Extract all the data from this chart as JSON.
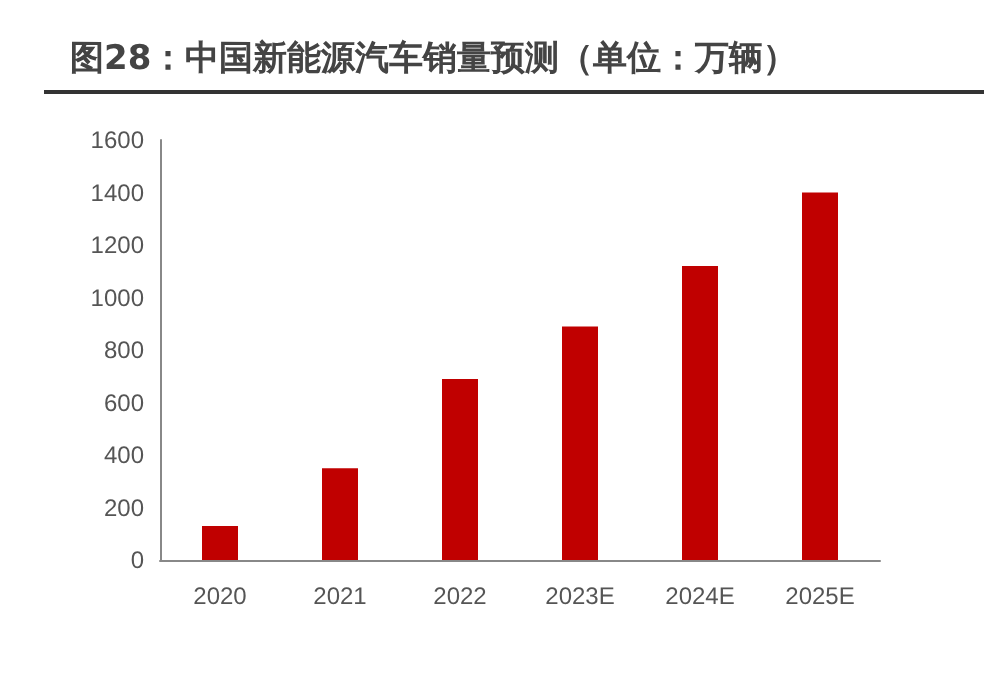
{
  "chart_data": {
    "type": "bar",
    "title": "图28：中国新能源汽车销量预测（单位：万辆）",
    "categories": [
      "2020",
      "2021",
      "2022",
      "2023E",
      "2024E",
      "2025E"
    ],
    "values": [
      130,
      350,
      690,
      890,
      1120,
      1400
    ],
    "color": "#c00000",
    "ylim": [
      0,
      1600
    ],
    "yticks": [
      0,
      200,
      400,
      600,
      800,
      1000,
      1200,
      1400,
      1600
    ],
    "grid": false
  }
}
